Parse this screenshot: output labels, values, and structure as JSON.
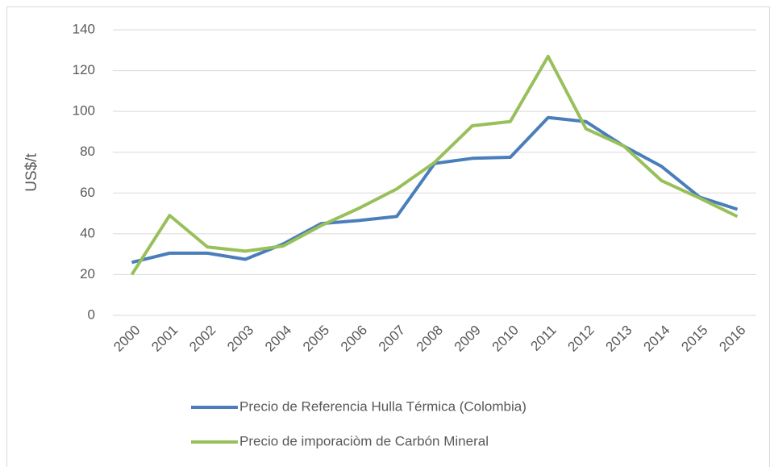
{
  "chart_data": {
    "type": "line",
    "categories": [
      "2000",
      "2001",
      "2002",
      "2003",
      "2004",
      "2005",
      "2006",
      "2007",
      "2008",
      "2009",
      "2010",
      "2011",
      "2012",
      "2013",
      "2014",
      "2015",
      "2016"
    ],
    "ylabel": "US$/t",
    "ylim": [
      0,
      140
    ],
    "yticks": [
      0,
      20,
      40,
      60,
      80,
      100,
      120,
      140
    ],
    "grid": true,
    "series": [
      {
        "name": "Precio de Referencia Hulla Térmica (Colombia)",
        "color": "#4a7ebb",
        "values": [
          26,
          30.5,
          30.5,
          27.5,
          35,
          45,
          46.5,
          48.5,
          74.5,
          77,
          77.5,
          97,
          95,
          83,
          73,
          58,
          52
        ]
      },
      {
        "name": "Precio de imporaciòm de Carbón Mineral",
        "color": "#98c05a",
        "values": [
          20,
          49,
          33.5,
          31.5,
          34,
          44,
          52.5,
          62,
          75,
          93,
          95,
          127,
          91.5,
          83,
          66,
          57.5,
          48.5
        ]
      }
    ]
  }
}
